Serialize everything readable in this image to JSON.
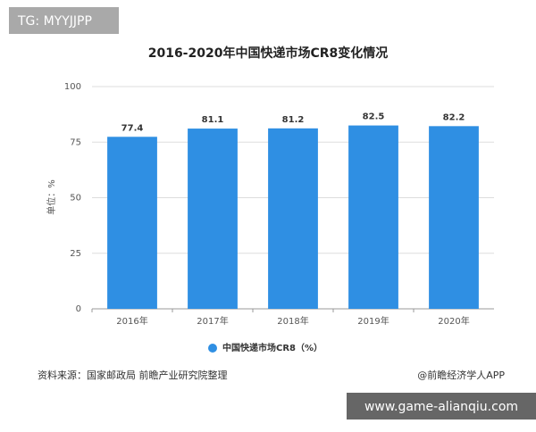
{
  "tag": "TG: MYYJJPP",
  "source": "资料来源：国家邮政局 前瞻产业研究院整理",
  "credit": "@前瞻经济学人APP",
  "watermark": "www.game-alianqiu.com",
  "chart_data": {
    "type": "bar",
    "title": "2016-2020年中国快递市场CR8变化情况",
    "y_label": "单位：%",
    "categories": [
      "2016年",
      "2017年",
      "2018年",
      "2019年",
      "2020年"
    ],
    "series": [
      {
        "name": "中国快递市场CR8（%）",
        "color": "#2f8fe3",
        "values": [
          77.4,
          81.1,
          81.2,
          82.5,
          82.2
        ]
      }
    ],
    "ylim": [
      0,
      100
    ],
    "yticks": [
      0,
      25,
      50,
      75,
      100
    ],
    "grid": true,
    "legend": "bottom"
  }
}
